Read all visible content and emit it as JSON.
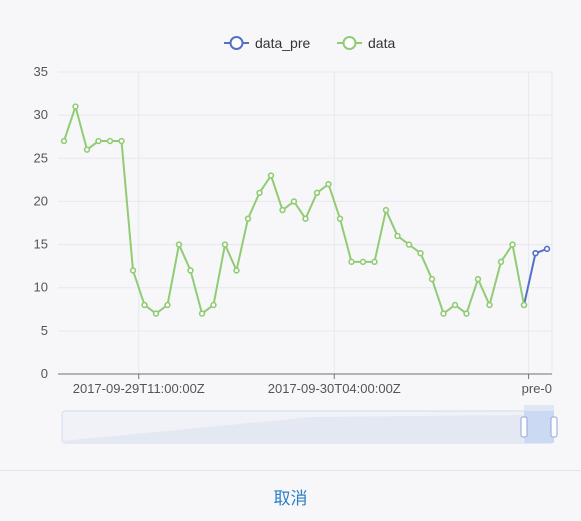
{
  "chart_data": {
    "type": "line",
    "xlabel": "",
    "ylabel": "",
    "ylim": [
      0,
      35
    ],
    "y_ticks": [
      0,
      5,
      10,
      15,
      20,
      25,
      30,
      35
    ],
    "x_tick_labels": [
      "2017-09-29T11:00:00Z",
      "2017-09-30T04:00:00Z",
      "pre-0"
    ],
    "legend": {
      "placement": "top-center",
      "entries": [
        "data_pre",
        "data"
      ]
    },
    "grid": true,
    "series": [
      {
        "name": "data",
        "color": "#91cc75",
        "values": [
          27,
          31,
          26,
          27,
          27,
          27,
          12,
          8,
          7,
          8,
          15,
          12,
          7,
          8,
          15,
          12,
          18,
          21,
          23,
          19,
          20,
          18,
          21,
          22,
          18,
          13,
          13,
          13,
          19,
          16,
          15,
          14,
          11,
          7,
          8,
          7,
          11,
          8,
          13,
          15,
          8
        ]
      },
      {
        "name": "data_pre",
        "color": "#5470c6",
        "values": [
          8,
          14,
          14.5
        ]
      }
    ]
  },
  "footer": {
    "cancel_label": "取消"
  }
}
